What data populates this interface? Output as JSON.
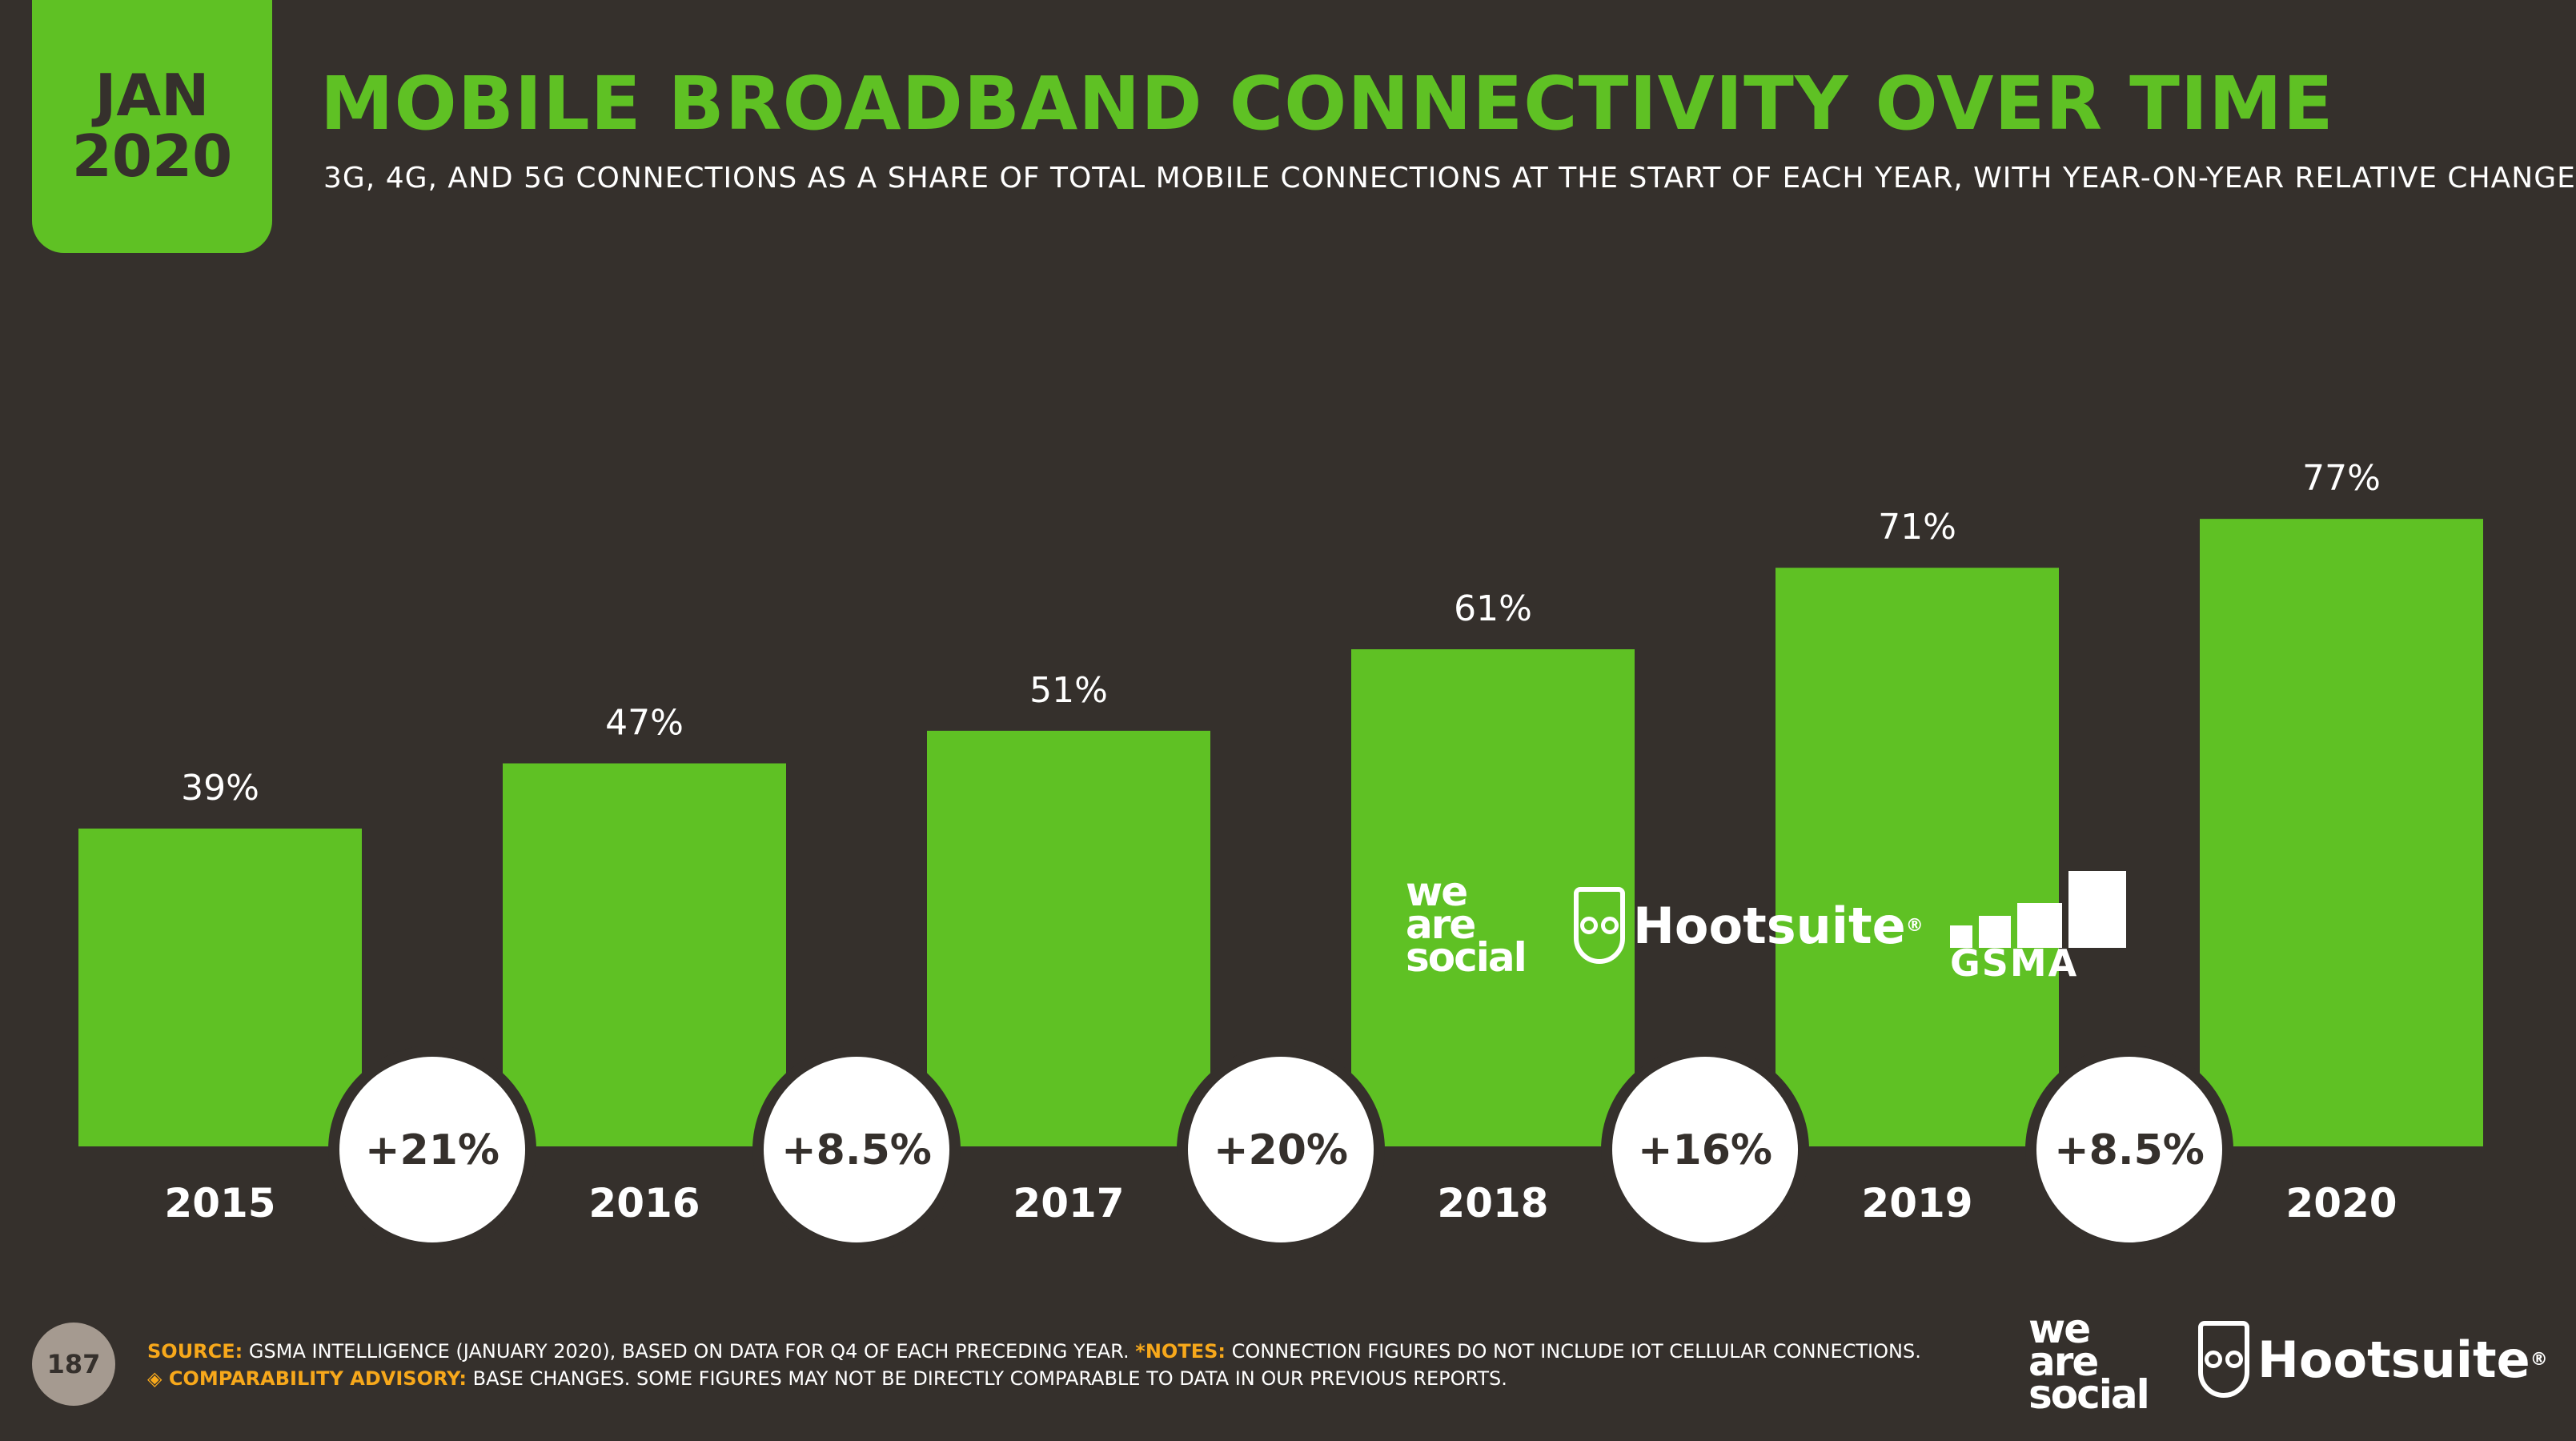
{
  "badge": {
    "month": "JAN",
    "year": "2020"
  },
  "title": "MOBILE BROADBAND CONNECTIVITY OVER TIME",
  "subtitle": "3G, 4G, AND 5G CONNECTIONS AS A SHARE OF TOTAL MOBILE CONNECTIONS AT THE START OF EACH YEAR, WITH YEAR-ON-YEAR RELATIVE CHANGE",
  "colors": {
    "background": "#35302c",
    "accent": "#5fc124",
    "advisory": "#f7a81b"
  },
  "chart_data": {
    "type": "bar",
    "categories": [
      "2015",
      "2016",
      "2017",
      "2018",
      "2019",
      "2020"
    ],
    "values": [
      39,
      47,
      51,
      61,
      71,
      77
    ],
    "value_labels": [
      "39%",
      "47%",
      "51%",
      "61%",
      "71%",
      "77%"
    ],
    "changes": [
      "+21%",
      "+8.5%",
      "+20%",
      "+16%",
      "+8.5%"
    ],
    "ylim": [
      0,
      100
    ],
    "grid": false,
    "legend": "none"
  },
  "logos": {
    "we_are_social": [
      "we",
      "are",
      "social"
    ],
    "hootsuite": "Hootsuite",
    "registered": "®",
    "gsma": "GSMA"
  },
  "footer": {
    "page_number": "187",
    "source_label": "SOURCE:",
    "source_text": "GSMA INTELLIGENCE (JANUARY 2020), BASED ON DATA FOR Q4 OF EACH PRECEDING YEAR.",
    "notes_label": "*NOTES:",
    "notes_text": "CONNECTION FIGURES DO NOT INCLUDE IOT CELLULAR CONNECTIONS.",
    "advisory_label": "◈ COMPARABILITY ADVISORY:",
    "advisory_text": "BASE CHANGES. SOME FIGURES MAY NOT BE DIRECTLY COMPARABLE TO DATA IN OUR PREVIOUS REPORTS."
  }
}
